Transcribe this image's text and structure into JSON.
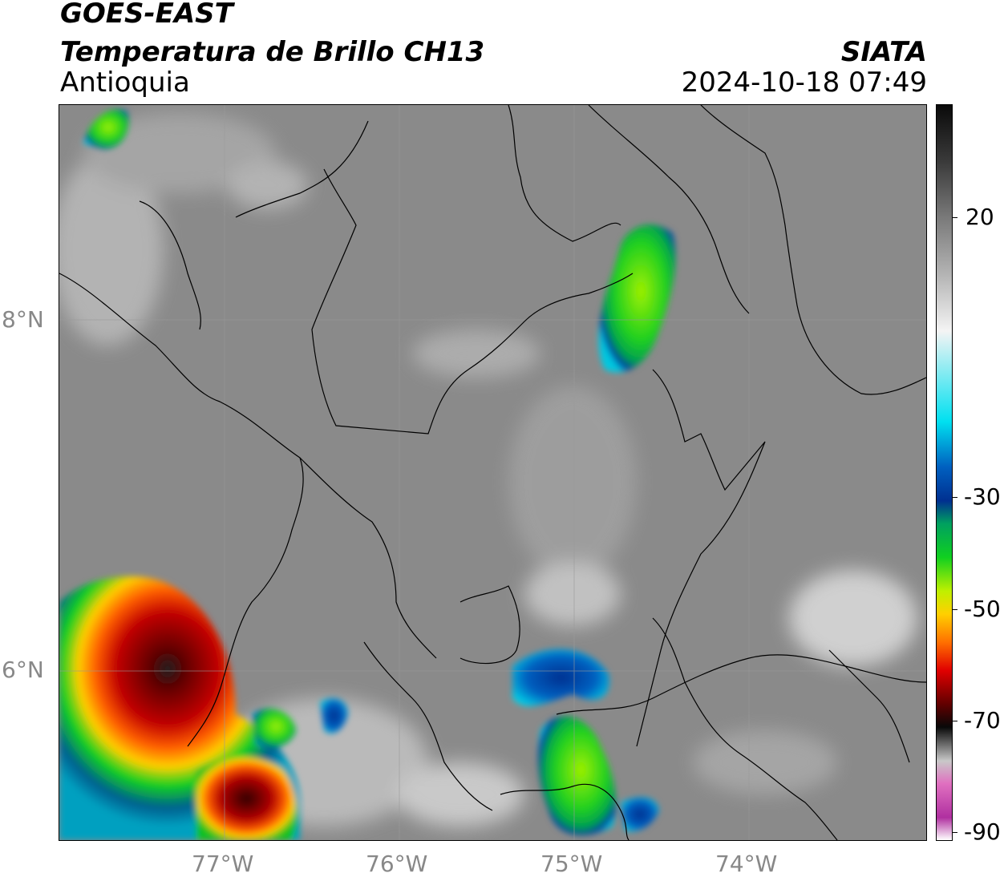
{
  "header": {
    "satellite": "GOES-EAST",
    "product": "Temperatura de Brillo CH13",
    "region": "Antioquia",
    "agency": "SIATA",
    "datetime": "2024-10-18 07:49"
  },
  "map": {
    "lat_ticks": [
      "8°N",
      "6°N"
    ],
    "lon_ticks": [
      "77°W",
      "76°W",
      "75°W",
      "74°W"
    ],
    "background_color": "#8a8a8a",
    "border_color": "#000000"
  },
  "colorbar": {
    "ticks": [
      "20",
      "-30",
      "-50",
      "-70",
      "-90"
    ],
    "stops": [
      {
        "v": 40,
        "c": "#0a0a0a"
      },
      {
        "v": 30,
        "c": "#3a3a3a"
      },
      {
        "v": 20,
        "c": "#7a7a7a"
      },
      {
        "v": 10,
        "c": "#b4b4b4"
      },
      {
        "v": 0,
        "c": "#f4f4f4"
      },
      {
        "v": -16,
        "c": "#00e0f0"
      },
      {
        "v": -24,
        "c": "#0060c0"
      },
      {
        "v": -30,
        "c": "#003090"
      },
      {
        "v": -34,
        "c": "#00a060"
      },
      {
        "v": -40,
        "c": "#10d020"
      },
      {
        "v": -46,
        "c": "#c0f000"
      },
      {
        "v": -50,
        "c": "#ffd000"
      },
      {
        "v": -55,
        "c": "#ff7000"
      },
      {
        "v": -60,
        "c": "#e00000"
      },
      {
        "v": -66,
        "c": "#600000"
      },
      {
        "v": -70,
        "c": "#080808"
      },
      {
        "v": -76,
        "c": "#c8c8c8"
      },
      {
        "v": -80,
        "c": "#e070c0"
      },
      {
        "v": -86,
        "c": "#b030a0"
      },
      {
        "v": -90,
        "c": "#ffffff"
      }
    ]
  }
}
